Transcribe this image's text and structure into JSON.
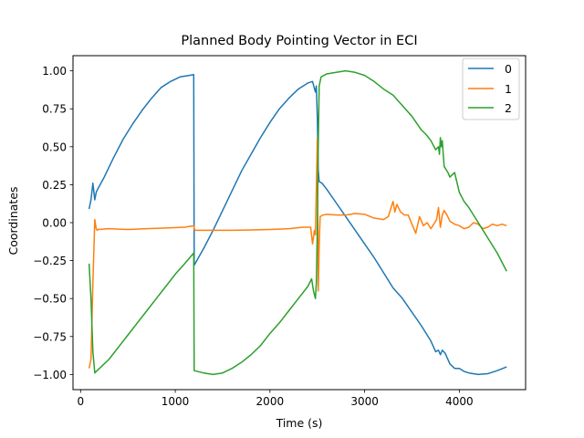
{
  "chart_data": {
    "type": "line",
    "title": "Planned Body Pointing Vector in ECI",
    "xlabel": "Time (s)",
    "ylabel": "Coordinates",
    "xlim": [
      -80,
      4700
    ],
    "ylim": [
      -1.1,
      1.1
    ],
    "xticks": [
      0,
      1000,
      2000,
      3000,
      4000
    ],
    "xtick_labels": [
      "0",
      "1000",
      "2000",
      "3000",
      "4000"
    ],
    "yticks": [
      -1.0,
      -0.75,
      -0.5,
      -0.25,
      0.0,
      0.25,
      0.5,
      0.75,
      1.0
    ],
    "ytick_labels": [
      "−1.00",
      "−0.75",
      "−0.50",
      "−0.25",
      "0.00",
      "0.25",
      "0.50",
      "0.75",
      "1.00"
    ],
    "grid": false,
    "legend": {
      "placement": "top-right",
      "entries": [
        "0",
        "1",
        "2"
      ]
    },
    "series": [
      {
        "name": "0",
        "color": "#1f77b4",
        "x": [
          90,
          110,
          130,
          150,
          165,
          180,
          250,
          350,
          450,
          550,
          650,
          750,
          850,
          950,
          1050,
          1150,
          1195,
          1200,
          1300,
          1400,
          1500,
          1600,
          1700,
          1800,
          1900,
          2000,
          2100,
          2200,
          2300,
          2400,
          2450,
          2480,
          2490,
          2500,
          2510,
          2520,
          2550,
          2600,
          2700,
          2800,
          2900,
          3000,
          3100,
          3200,
          3300,
          3400,
          3500,
          3600,
          3700,
          3750,
          3780,
          3800,
          3820,
          3850,
          3900,
          3950,
          4000,
          4050,
          4100,
          4200,
          4300,
          4400,
          4500
        ],
        "y": [
          0.09,
          0.15,
          0.26,
          0.15,
          0.2,
          0.22,
          0.3,
          0.43,
          0.55,
          0.65,
          0.74,
          0.82,
          0.89,
          0.93,
          0.96,
          0.97,
          0.975,
          -0.28,
          -0.17,
          -0.05,
          0.08,
          0.21,
          0.34,
          0.45,
          0.56,
          0.66,
          0.75,
          0.82,
          0.88,
          0.92,
          0.93,
          0.86,
          0.9,
          0.7,
          0.35,
          0.27,
          0.26,
          0.22,
          0.13,
          0.04,
          -0.05,
          -0.14,
          -0.23,
          -0.33,
          -0.43,
          -0.5,
          -0.59,
          -0.68,
          -0.78,
          -0.85,
          -0.84,
          -0.87,
          -0.84,
          -0.86,
          -0.93,
          -0.96,
          -0.96,
          -0.98,
          -0.99,
          -1.0,
          -0.995,
          -0.975,
          -0.95
        ]
      },
      {
        "name": "1",
        "color": "#ff7f0e",
        "x": [
          90,
          110,
          130,
          150,
          165,
          175,
          185,
          300,
          500,
          700,
          900,
          1100,
          1195,
          1205,
          1400,
          1600,
          1800,
          2000,
          2200,
          2350,
          2430,
          2450,
          2470,
          2480,
          2490,
          2500,
          2510,
          2520,
          2530,
          2560,
          2600,
          2700,
          2800,
          2900,
          3000,
          3100,
          3200,
          3250,
          3300,
          3320,
          3340,
          3380,
          3420,
          3460,
          3500,
          3540,
          3580,
          3620,
          3660,
          3700,
          3720,
          3740,
          3760,
          3780,
          3790,
          3800,
          3820,
          3840,
          3870,
          3900,
          3950,
          4000,
          4050,
          4100,
          4150,
          4200,
          4250,
          4300,
          4350,
          4400,
          4450,
          4500
        ],
        "y": [
          -0.96,
          -0.9,
          -0.4,
          0.02,
          -0.04,
          -0.05,
          -0.045,
          -0.04,
          -0.045,
          -0.04,
          -0.035,
          -0.03,
          -0.02,
          -0.05,
          -0.05,
          -0.05,
          -0.048,
          -0.045,
          -0.04,
          -0.03,
          -0.03,
          -0.14,
          -0.05,
          -0.08,
          0.22,
          0.55,
          -0.45,
          -0.15,
          0.04,
          0.05,
          0.055,
          0.05,
          0.05,
          0.06,
          0.055,
          0.03,
          0.02,
          0.04,
          0.14,
          0.07,
          0.12,
          0.07,
          0.05,
          0.05,
          -0.01,
          -0.07,
          0.04,
          -0.02,
          0.0,
          -0.04,
          -0.02,
          0.0,
          0.02,
          0.1,
          0.03,
          -0.03,
          0.05,
          0.08,
          0.05,
          0.01,
          -0.01,
          -0.02,
          -0.04,
          -0.03,
          0.0,
          -0.01,
          -0.04,
          -0.03,
          -0.01,
          -0.02,
          -0.01,
          -0.02
        ]
      },
      {
        "name": "2",
        "color": "#2ca02c",
        "x": [
          90,
          110,
          130,
          150,
          165,
          200,
          300,
          400,
          500,
          600,
          700,
          800,
          900,
          1000,
          1100,
          1195,
          1200,
          1300,
          1400,
          1500,
          1600,
          1700,
          1800,
          1900,
          2000,
          2100,
          2200,
          2300,
          2400,
          2440,
          2460,
          2480,
          2490,
          2500,
          2510,
          2520,
          2540,
          2600,
          2700,
          2800,
          2900,
          3000,
          3100,
          3200,
          3300,
          3400,
          3500,
          3600,
          3650,
          3700,
          3750,
          3780,
          3790,
          3800,
          3810,
          3820,
          3840,
          3860,
          3880,
          3900,
          3950,
          4000,
          4050,
          4100,
          4200,
          4300,
          4400,
          4500
        ],
        "y": [
          -0.27,
          -0.5,
          -0.85,
          -0.99,
          -0.98,
          -0.96,
          -0.9,
          -0.82,
          -0.74,
          -0.66,
          -0.58,
          -0.5,
          -0.42,
          -0.34,
          -0.27,
          -0.2,
          -0.975,
          -0.99,
          -1.0,
          -0.99,
          -0.96,
          -0.92,
          -0.87,
          -0.81,
          -0.73,
          -0.66,
          -0.58,
          -0.5,
          -0.42,
          -0.37,
          -0.45,
          -0.5,
          -0.4,
          -0.05,
          0.5,
          0.9,
          0.96,
          0.98,
          0.99,
          1.0,
          0.99,
          0.97,
          0.93,
          0.88,
          0.84,
          0.77,
          0.7,
          0.61,
          0.58,
          0.54,
          0.48,
          0.5,
          0.45,
          0.56,
          0.5,
          0.54,
          0.37,
          0.35,
          0.33,
          0.3,
          0.33,
          0.2,
          0.14,
          0.1,
          0.0,
          -0.1,
          -0.2,
          -0.32
        ]
      }
    ]
  }
}
